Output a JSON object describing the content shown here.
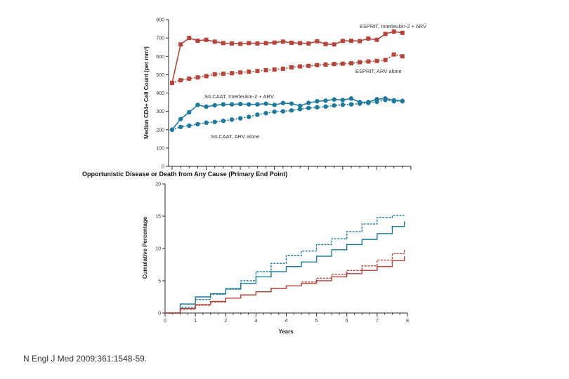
{
  "colors": {
    "red": "#b5453a",
    "blue": "#1e7a9c",
    "axis": "#2b2b2b"
  },
  "citation": "N Engl J Med 2009;361:1548-59.",
  "chart_data": [
    {
      "type": "line",
      "name": "cd4-count",
      "ylabel": "Median CD4+ Cell Count (per mm³)",
      "ylim": [
        0,
        800
      ],
      "yticks": [
        0,
        100,
        200,
        300,
        400,
        500,
        600,
        700,
        800
      ],
      "xlim": [
        0,
        28
      ],
      "series": [
        {
          "name": "ESPRIT, Interleukin-2 + ARV",
          "label": "ESPRIT, Interleukin-2 + ARV",
          "color": "red",
          "style": "solid",
          "marker": "square",
          "x": [
            0,
            1,
            2,
            3,
            4,
            5,
            6,
            7,
            8,
            9,
            10,
            11,
            12,
            13,
            14,
            15,
            16,
            17,
            18,
            19,
            20,
            21,
            22,
            23,
            24,
            25,
            26,
            27
          ],
          "y": [
            455,
            665,
            700,
            685,
            690,
            680,
            672,
            670,
            668,
            672,
            670,
            672,
            675,
            680,
            674,
            672,
            670,
            682,
            667,
            665,
            684,
            685,
            683,
            697,
            690,
            722,
            735,
            728
          ]
        },
        {
          "name": "ESPRIT, ARV alone",
          "label": "ESPRIT, ARV alone",
          "color": "red",
          "style": "dotted",
          "marker": "square",
          "x": [
            0,
            1,
            2,
            3,
            4,
            5,
            6,
            7,
            8,
            9,
            10,
            11,
            12,
            13,
            14,
            15,
            16,
            17,
            18,
            19,
            20,
            21,
            22,
            23,
            24,
            25,
            26,
            27
          ],
          "y": [
            455,
            470,
            478,
            485,
            492,
            502,
            505,
            508,
            512,
            516,
            520,
            524,
            528,
            532,
            540,
            545,
            548,
            552,
            555,
            558,
            560,
            562,
            568,
            572,
            575,
            580,
            610,
            600
          ]
        },
        {
          "name": "SILCAAT, Interleukin-2 + ARV",
          "label": "SILCAAT, Interleukin-2 + ARV",
          "color": "blue",
          "style": "solid",
          "marker": "circle",
          "x": [
            0,
            1,
            2,
            3,
            4,
            5,
            6,
            7,
            8,
            9,
            10,
            11,
            12,
            13,
            14,
            15,
            16,
            17,
            18,
            19,
            20,
            21,
            22,
            23,
            24,
            25,
            26,
            27
          ],
          "y": [
            200,
            258,
            295,
            335,
            325,
            333,
            338,
            338,
            340,
            338,
            338,
            342,
            335,
            345,
            342,
            330,
            346,
            355,
            358,
            365,
            362,
            370,
            350,
            350,
            366,
            370,
            360,
            357
          ]
        },
        {
          "name": "SILCAAT, ARV alone",
          "label": "SILCAAT, ARV alone",
          "color": "blue",
          "style": "dotted",
          "marker": "circle",
          "x": [
            0,
            1,
            2,
            3,
            4,
            5,
            6,
            7,
            8,
            9,
            10,
            11,
            12,
            13,
            14,
            15,
            16,
            17,
            18,
            19,
            20,
            21,
            22,
            23,
            24,
            25,
            26,
            27
          ],
          "y": [
            200,
            215,
            222,
            230,
            238,
            242,
            248,
            255,
            262,
            270,
            282,
            290,
            298,
            300,
            305,
            312,
            318,
            322,
            326,
            332,
            336,
            338,
            342,
            346,
            352,
            362,
            355,
            355
          ]
        }
      ]
    },
    {
      "type": "line",
      "name": "cumulative-events",
      "title": "Opportunistic Disease or Death from Any Cause (Primary End Point)",
      "xlabel": "Years",
      "ylabel": "Cumulative Percentage",
      "xlim": [
        0,
        8
      ],
      "ylim": [
        0,
        20
      ],
      "xticks": [
        0,
        1,
        2,
        3,
        4,
        5,
        6,
        7,
        8
      ],
      "yticks": [
        0,
        5,
        10,
        15,
        20
      ],
      "series": [
        {
          "name": "Blue dashed",
          "color": "blue",
          "style": "dashed",
          "x": [
            0,
            0.5,
            1,
            1.5,
            2,
            2.5,
            3,
            3.5,
            4,
            4.5,
            5,
            5.5,
            6,
            6.5,
            7,
            7.5,
            7.9
          ],
          "y": [
            0,
            0.9,
            2.1,
            2.9,
            3.8,
            5.0,
            6.4,
            7.7,
            8.9,
            9.6,
            10.6,
            11.5,
            12.6,
            13.8,
            14.8,
            15.1,
            15.1
          ]
        },
        {
          "name": "Blue solid",
          "color": "blue",
          "style": "solid",
          "x": [
            0,
            0.5,
            1,
            1.5,
            2,
            2.5,
            3,
            3.5,
            4,
            4.5,
            5,
            5.5,
            6,
            6.5,
            7,
            7.5,
            7.9
          ],
          "y": [
            0,
            1.4,
            2.5,
            3.0,
            3.7,
            4.6,
            5.6,
            6.4,
            7.2,
            7.9,
            8.8,
            9.8,
            10.6,
            11.4,
            12.3,
            13.4,
            14.2
          ]
        },
        {
          "name": "Red dashed",
          "color": "red",
          "style": "dashed",
          "x": [
            0,
            0.5,
            1,
            1.5,
            2,
            2.5,
            3,
            3.5,
            4,
            4.5,
            5,
            5.5,
            6,
            6.5,
            7,
            7.5,
            7.9
          ],
          "y": [
            0,
            0.6,
            1.2,
            1.7,
            2.3,
            2.8,
            3.3,
            3.8,
            4.2,
            4.8,
            5.4,
            6.0,
            6.6,
            7.3,
            8.2,
            9.2,
            9.9
          ]
        },
        {
          "name": "Red solid",
          "color": "red",
          "style": "solid",
          "x": [
            0,
            0.5,
            1,
            1.5,
            2,
            2.5,
            3,
            3.5,
            4,
            4.5,
            5,
            5.5,
            6,
            6.5,
            7,
            7.5,
            7.9
          ],
          "y": [
            0,
            0.7,
            1.3,
            1.8,
            2.3,
            2.8,
            3.3,
            3.8,
            4.2,
            4.6,
            5.0,
            5.6,
            6.1,
            6.6,
            7.2,
            8.1,
            8.8
          ]
        }
      ]
    }
  ]
}
